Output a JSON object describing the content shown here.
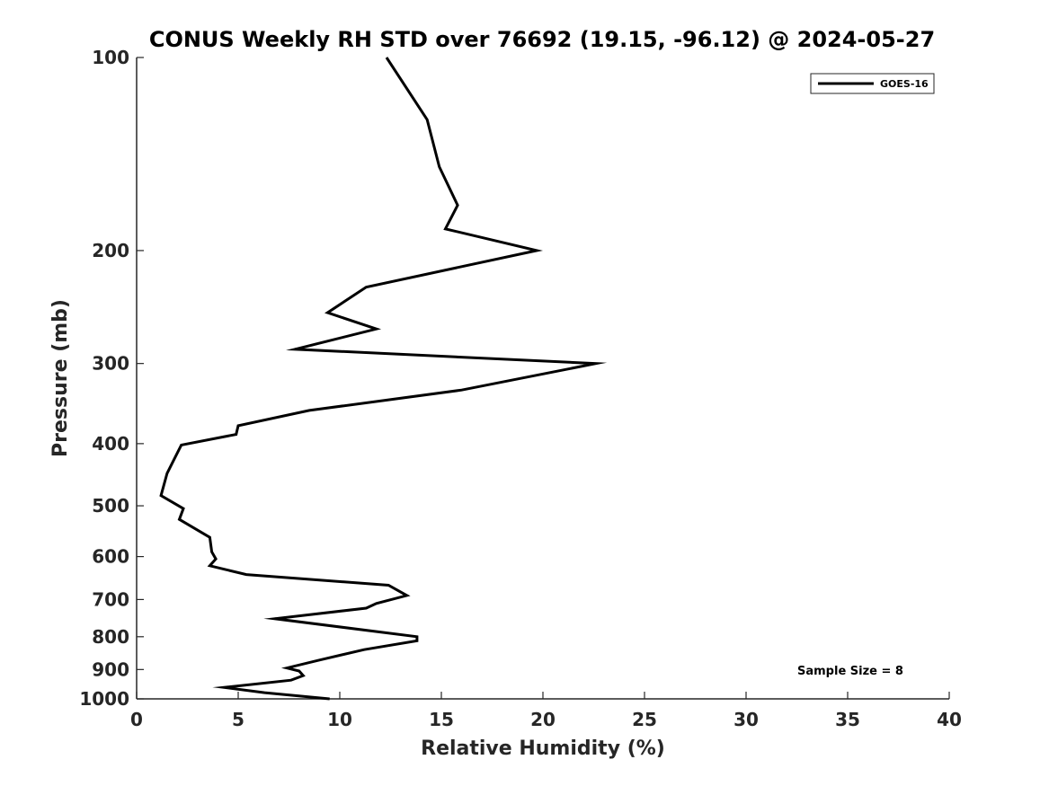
{
  "chart_data": {
    "type": "line",
    "title": "CONUS Weekly RH STD over 76692 (19.15, -96.12) @ 2024-05-27",
    "xlabel": "Relative Humidity (%)",
    "ylabel": "Pressure (mb)",
    "xlim": [
      0,
      40
    ],
    "ylim": [
      100,
      1000
    ],
    "yscale": "log",
    "y_reversed": true,
    "x_ticks": [
      "0",
      "5",
      "10",
      "15",
      "20",
      "25",
      "30",
      "35",
      "40"
    ],
    "y_ticks": [
      "100",
      "200",
      "300",
      "400",
      "500",
      "600",
      "700",
      "800",
      "900",
      "1000"
    ],
    "legend_position": "top-right",
    "grid": false,
    "annotation": "Sample Size = 8",
    "series": [
      {
        "name": "GOES-16",
        "color": "#000000",
        "points": [
          [
            12.3,
            100
          ],
          [
            14.3,
            125
          ],
          [
            14.9,
            148
          ],
          [
            15.8,
            170
          ],
          [
            15.2,
            185
          ],
          [
            19.7,
            200
          ],
          [
            11.3,
            228
          ],
          [
            9.4,
            250
          ],
          [
            11.8,
            265
          ],
          [
            7.8,
            285
          ],
          [
            22.6,
            300
          ],
          [
            16.0,
            330
          ],
          [
            8.5,
            355
          ],
          [
            5.0,
            375
          ],
          [
            4.9,
            387
          ],
          [
            2.2,
            402
          ],
          [
            1.5,
            445
          ],
          [
            1.2,
            482
          ],
          [
            2.3,
            505
          ],
          [
            2.1,
            525
          ],
          [
            3.6,
            560
          ],
          [
            3.7,
            590
          ],
          [
            3.9,
            605
          ],
          [
            3.6,
            620
          ],
          [
            5.4,
            640
          ],
          [
            12.4,
            665
          ],
          [
            13.3,
            690
          ],
          [
            11.8,
            710
          ],
          [
            11.3,
            722
          ],
          [
            6.8,
            750
          ],
          [
            13.8,
            800
          ],
          [
            13.8,
            812
          ],
          [
            11.2,
            838
          ],
          [
            9.0,
            870
          ],
          [
            7.4,
            895
          ],
          [
            8.0,
            905
          ],
          [
            8.2,
            920
          ],
          [
            7.6,
            935
          ],
          [
            4.3,
            960
          ],
          [
            6.3,
            978
          ],
          [
            9.5,
            1000
          ]
        ]
      }
    ]
  }
}
